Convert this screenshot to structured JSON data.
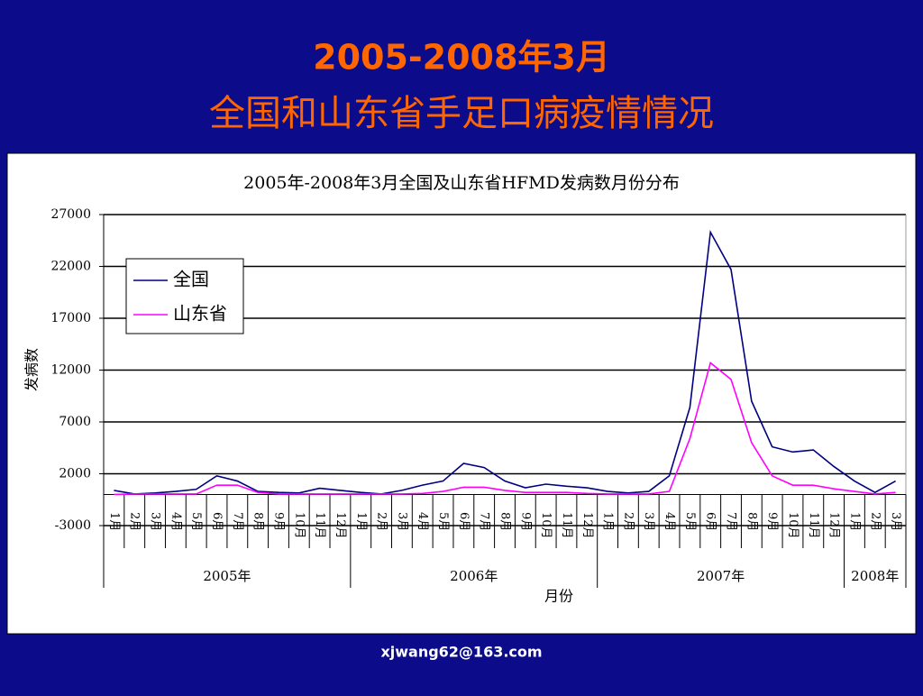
{
  "header": {
    "title_line1": "2005-2008年3月",
    "title_line2": "全国和山东省手足口病疫情情况"
  },
  "footer": "xjwang62@163.com",
  "chart_data": {
    "type": "line",
    "title": "2005年-2008年3月全国及山东省HFMD发病数月份分布",
    "y_label": "发病数",
    "x_label": "月份",
    "category_groups": [
      {
        "label": "2005年",
        "categories": [
          "1月",
          "2月",
          "3月",
          "4月",
          "5月",
          "6月",
          "7月",
          "8月",
          "9月",
          "10月",
          "11月",
          "12月"
        ]
      },
      {
        "label": "2006年",
        "categories": [
          "1月",
          "2月",
          "3月",
          "4月",
          "5月",
          "6月",
          "7月",
          "8月",
          "9月",
          "10月",
          "11月",
          "12月"
        ]
      },
      {
        "label": "2007年",
        "categories": [
          "1月",
          "2月",
          "3月",
          "4月",
          "5月",
          "6月",
          "7月",
          "8月",
          "9月",
          "10月",
          "11月",
          "12月"
        ]
      },
      {
        "label": "2008年",
        "categories": [
          "1月",
          "2月",
          "3月"
        ]
      }
    ],
    "series": [
      {
        "name": "全国",
        "color": "#000080",
        "values": [
          400,
          50,
          150,
          300,
          500,
          1800,
          1300,
          300,
          200,
          150,
          600,
          400,
          200,
          50,
          400,
          900,
          1300,
          3000,
          2600,
          1300,
          650,
          1000,
          800,
          650,
          300,
          150,
          300,
          1800,
          8400,
          25300,
          21700,
          9000,
          4600,
          4100,
          4300,
          2700,
          1300,
          200,
          1300
        ]
      },
      {
        "name": "山东省",
        "color": "#ff00ff",
        "values": [
          0,
          50,
          50,
          50,
          50,
          900,
          900,
          200,
          50,
          50,
          50,
          50,
          50,
          50,
          50,
          100,
          300,
          700,
          700,
          400,
          200,
          200,
          200,
          100,
          50,
          50,
          50,
          300,
          5400,
          12700,
          11100,
          5000,
          1800,
          900,
          900,
          550,
          300,
          50,
          200
        ]
      }
    ],
    "ylim": [
      -3000,
      27000
    ],
    "yticks": [
      -3000,
      2000,
      7000,
      12000,
      17000,
      22000,
      27000
    ],
    "grid": true,
    "legend": "upper-left"
  }
}
